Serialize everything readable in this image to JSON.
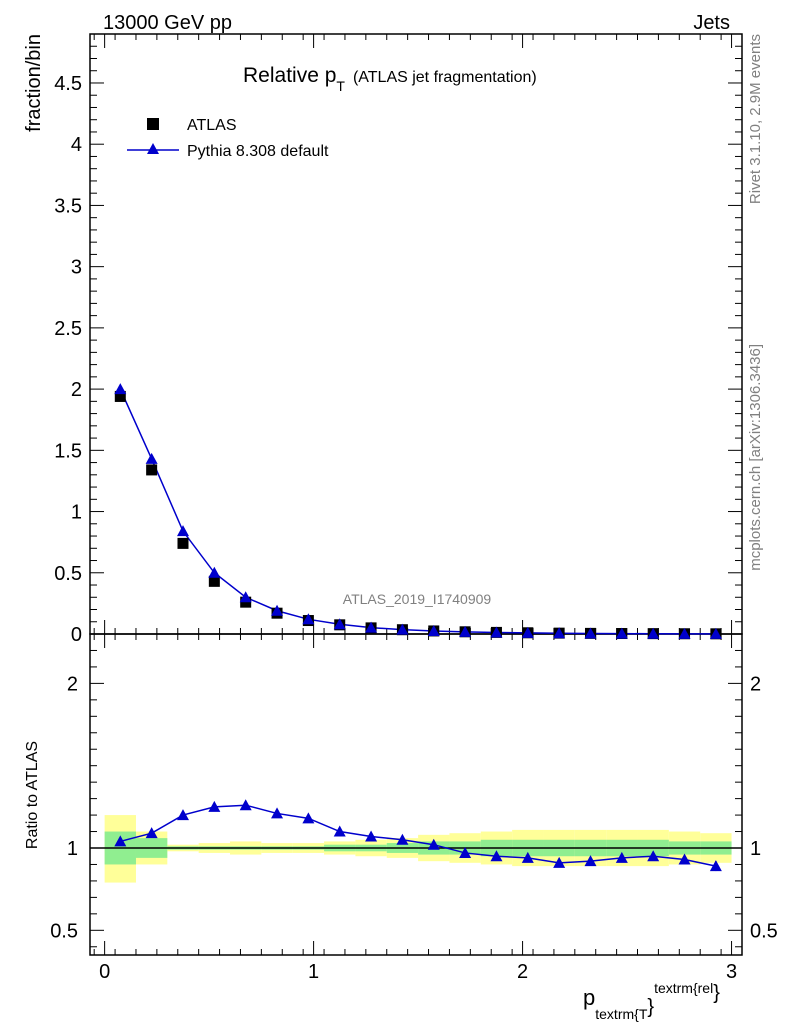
{
  "header": {
    "left": "13000 GeV pp",
    "right": "Jets"
  },
  "side": {
    "rivet": "Rivet 3.1.10,  2.9M events",
    "mcplots": "mcplots.cern.ch [arXiv:1306.3436]"
  },
  "chart_data": {
    "type": "scatter",
    "title_main": "Relative p",
    "title_sub": "T",
    "title_rest": "(ATLAS jet fragmentation)",
    "analysis_label": "ATLAS_2019_I1740909",
    "ylabel": "fraction/bin",
    "ratio_ylabel": "Ratio to ATLAS",
    "xlabel": {
      "base": "p",
      "sub": "textrm{T",
      "brace": "}",
      "sup": "textrm{rel",
      "sup_brace": "}"
    },
    "xlim": [
      -0.07,
      3.05
    ],
    "ylim": [
      0,
      4.9
    ],
    "ratio_ylim": [
      0.35,
      2.3
    ],
    "x_ticks": [
      "0",
      "1",
      "2",
      "3"
    ],
    "x_tick_values": [
      0,
      1,
      2,
      3
    ],
    "y_ticks": [
      "0",
      "0.5",
      "1",
      "1.5",
      "2",
      "2.5",
      "3",
      "3.5",
      "4",
      "4.5"
    ],
    "y_tick_values": [
      0,
      0.5,
      1,
      1.5,
      2,
      2.5,
      3,
      3.5,
      4,
      4.5
    ],
    "ratio_ticks": [
      "0.5",
      "1",
      "2"
    ],
    "ratio_tick_values": [
      0.5,
      1,
      2
    ],
    "legend": [
      {
        "name": "ATLAS",
        "marker": "square",
        "color": "#000000"
      },
      {
        "name": "Pythia 8.308 default",
        "marker": "triangle",
        "color": "#0000cc"
      }
    ],
    "bin_edges": [
      0,
      0.15,
      0.3,
      0.45,
      0.6,
      0.75,
      0.9,
      1.05,
      1.2,
      1.35,
      1.5,
      1.65,
      1.8,
      1.95,
      2.1,
      2.25,
      2.4,
      2.55,
      2.7,
      2.85,
      3.0
    ],
    "x": [
      0.075,
      0.225,
      0.375,
      0.525,
      0.675,
      0.825,
      0.975,
      1.125,
      1.275,
      1.425,
      1.575,
      1.725,
      1.875,
      2.025,
      2.175,
      2.325,
      2.475,
      2.625,
      2.775,
      2.925
    ],
    "series": [
      {
        "name": "ATLAS",
        "values": [
          1.94,
          1.34,
          0.74,
          0.43,
          0.26,
          0.17,
          0.11,
          0.075,
          0.05,
          0.035,
          0.025,
          0.018,
          0.013,
          0.01,
          0.007,
          0.005,
          0.004,
          0.003,
          0.002,
          0.0015
        ]
      },
      {
        "name": "Pythia 8.308 default",
        "values": [
          2.0,
          1.43,
          0.84,
          0.5,
          0.3,
          0.19,
          0.12,
          0.08,
          0.052,
          0.036,
          0.025,
          0.017,
          0.012,
          0.009,
          0.006,
          0.004,
          0.003,
          0.002,
          0.0015,
          0.001
        ]
      }
    ],
    "ratio": {
      "values": [
        1.04,
        1.09,
        1.2,
        1.25,
        1.26,
        1.21,
        1.18,
        1.1,
        1.07,
        1.05,
        1.02,
        0.97,
        0.95,
        0.94,
        0.91,
        0.92,
        0.94,
        0.95,
        0.93,
        0.89
      ],
      "errors": [
        0.005,
        0.005,
        0.005,
        0.005,
        0.005,
        0.005,
        0.005,
        0.005,
        0.005,
        0.005,
        0.005,
        0.006,
        0.008,
        0.01,
        0.012,
        0.015,
        0.018,
        0.02,
        0.025,
        0.03
      ],
      "band_inner_low": [
        0.9,
        0.94,
        0.99,
        0.99,
        0.99,
        0.99,
        0.99,
        0.98,
        0.98,
        0.97,
        0.96,
        0.96,
        0.95,
        0.95,
        0.95,
        0.95,
        0.95,
        0.95,
        0.96,
        0.96
      ],
      "band_inner_high": [
        1.1,
        1.06,
        1.01,
        1.01,
        1.01,
        1.01,
        1.01,
        1.02,
        1.02,
        1.03,
        1.04,
        1.04,
        1.05,
        1.05,
        1.05,
        1.05,
        1.05,
        1.05,
        1.04,
        1.04
      ],
      "band_outer_low": [
        0.79,
        0.9,
        0.98,
        0.97,
        0.96,
        0.97,
        0.97,
        0.96,
        0.95,
        0.94,
        0.92,
        0.91,
        0.9,
        0.89,
        0.89,
        0.89,
        0.89,
        0.89,
        0.9,
        0.91
      ],
      "band_outer_high": [
        1.2,
        1.1,
        1.02,
        1.03,
        1.04,
        1.03,
        1.03,
        1.04,
        1.05,
        1.06,
        1.08,
        1.09,
        1.1,
        1.11,
        1.11,
        1.11,
        1.11,
        1.11,
        1.1,
        1.09
      ]
    },
    "colors": {
      "mc": "#0000cc",
      "data": "#000000",
      "band_inner": "#90ee90",
      "band_outer": "#ffff99"
    }
  }
}
